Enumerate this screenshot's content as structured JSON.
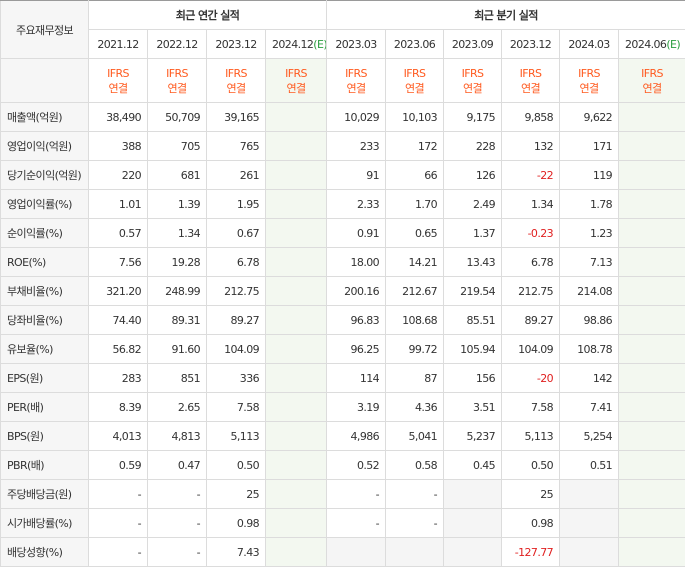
{
  "header": {
    "label_col": "주요재무정보",
    "annual_group": "최근 연간 실적",
    "quarter_group": "최근 분기 실적",
    "annual_periods": [
      "2021.12",
      "2022.12",
      "2023.12",
      "2024.12"
    ],
    "annual_est_marker": "(E)",
    "quarter_periods": [
      "2023.03",
      "2023.06",
      "2023.09",
      "2023.12",
      "2024.03",
      "2024.06"
    ],
    "quarter_est_marker": "(E)",
    "ifrs_line1": "IFRS",
    "ifrs_line2": "연결"
  },
  "rows": [
    {
      "label": "매출액(억원)",
      "a": [
        "38,490",
        "50,709",
        "39,165",
        ""
      ],
      "q": [
        "10,029",
        "10,103",
        "9,175",
        "9,858",
        "9,622",
        ""
      ]
    },
    {
      "label": "영업이익(억원)",
      "a": [
        "388",
        "705",
        "765",
        ""
      ],
      "q": [
        "233",
        "172",
        "228",
        "132",
        "171",
        ""
      ]
    },
    {
      "label": "당기순이익(억원)",
      "a": [
        "220",
        "681",
        "261",
        ""
      ],
      "q": [
        "91",
        "66",
        "126",
        "-22",
        "119",
        ""
      ]
    },
    {
      "label": "영업이익률(%)",
      "a": [
        "1.01",
        "1.39",
        "1.95",
        ""
      ],
      "q": [
        "2.33",
        "1.70",
        "2.49",
        "1.34",
        "1.78",
        ""
      ]
    },
    {
      "label": "순이익률(%)",
      "a": [
        "0.57",
        "1.34",
        "0.67",
        ""
      ],
      "q": [
        "0.91",
        "0.65",
        "1.37",
        "-0.23",
        "1.23",
        ""
      ]
    },
    {
      "label": "ROE(%)",
      "a": [
        "7.56",
        "19.28",
        "6.78",
        ""
      ],
      "q": [
        "18.00",
        "14.21",
        "13.43",
        "6.78",
        "7.13",
        ""
      ]
    },
    {
      "label": "부채비율(%)",
      "a": [
        "321.20",
        "248.99",
        "212.75",
        ""
      ],
      "q": [
        "200.16",
        "212.67",
        "219.54",
        "212.75",
        "214.08",
        ""
      ]
    },
    {
      "label": "당좌비율(%)",
      "a": [
        "74.40",
        "89.31",
        "89.27",
        ""
      ],
      "q": [
        "96.83",
        "108.68",
        "85.51",
        "89.27",
        "98.86",
        ""
      ]
    },
    {
      "label": "유보율(%)",
      "a": [
        "56.82",
        "91.60",
        "104.09",
        ""
      ],
      "q": [
        "96.25",
        "99.72",
        "105.94",
        "104.09",
        "108.78",
        ""
      ]
    },
    {
      "label": "EPS(원)",
      "a": [
        "283",
        "851",
        "336",
        ""
      ],
      "q": [
        "114",
        "87",
        "156",
        "-20",
        "142",
        ""
      ]
    },
    {
      "label": "PER(배)",
      "a": [
        "8.39",
        "2.65",
        "7.58",
        ""
      ],
      "q": [
        "3.19",
        "4.36",
        "3.51",
        "7.58",
        "7.41",
        ""
      ]
    },
    {
      "label": "BPS(원)",
      "a": [
        "4,013",
        "4,813",
        "5,113",
        ""
      ],
      "q": [
        "4,986",
        "5,041",
        "5,237",
        "5,113",
        "5,254",
        ""
      ]
    },
    {
      "label": "PBR(배)",
      "a": [
        "0.59",
        "0.47",
        "0.50",
        ""
      ],
      "q": [
        "0.52",
        "0.58",
        "0.45",
        "0.50",
        "0.51",
        ""
      ]
    },
    {
      "label": "주당배당금(원)",
      "a": [
        "-",
        "-",
        "25",
        ""
      ],
      "q": [
        "-",
        "-",
        "",
        "25",
        "",
        ""
      ]
    },
    {
      "label": "시가배당률(%)",
      "a": [
        "-",
        "-",
        "0.98",
        ""
      ],
      "q": [
        "-",
        "-",
        "",
        "0.98",
        "",
        ""
      ]
    },
    {
      "label": "배당성향(%)",
      "a": [
        "-",
        "-",
        "7.43",
        ""
      ],
      "q": [
        "",
        "",
        "",
        "-127.77",
        "",
        ""
      ]
    }
  ]
}
